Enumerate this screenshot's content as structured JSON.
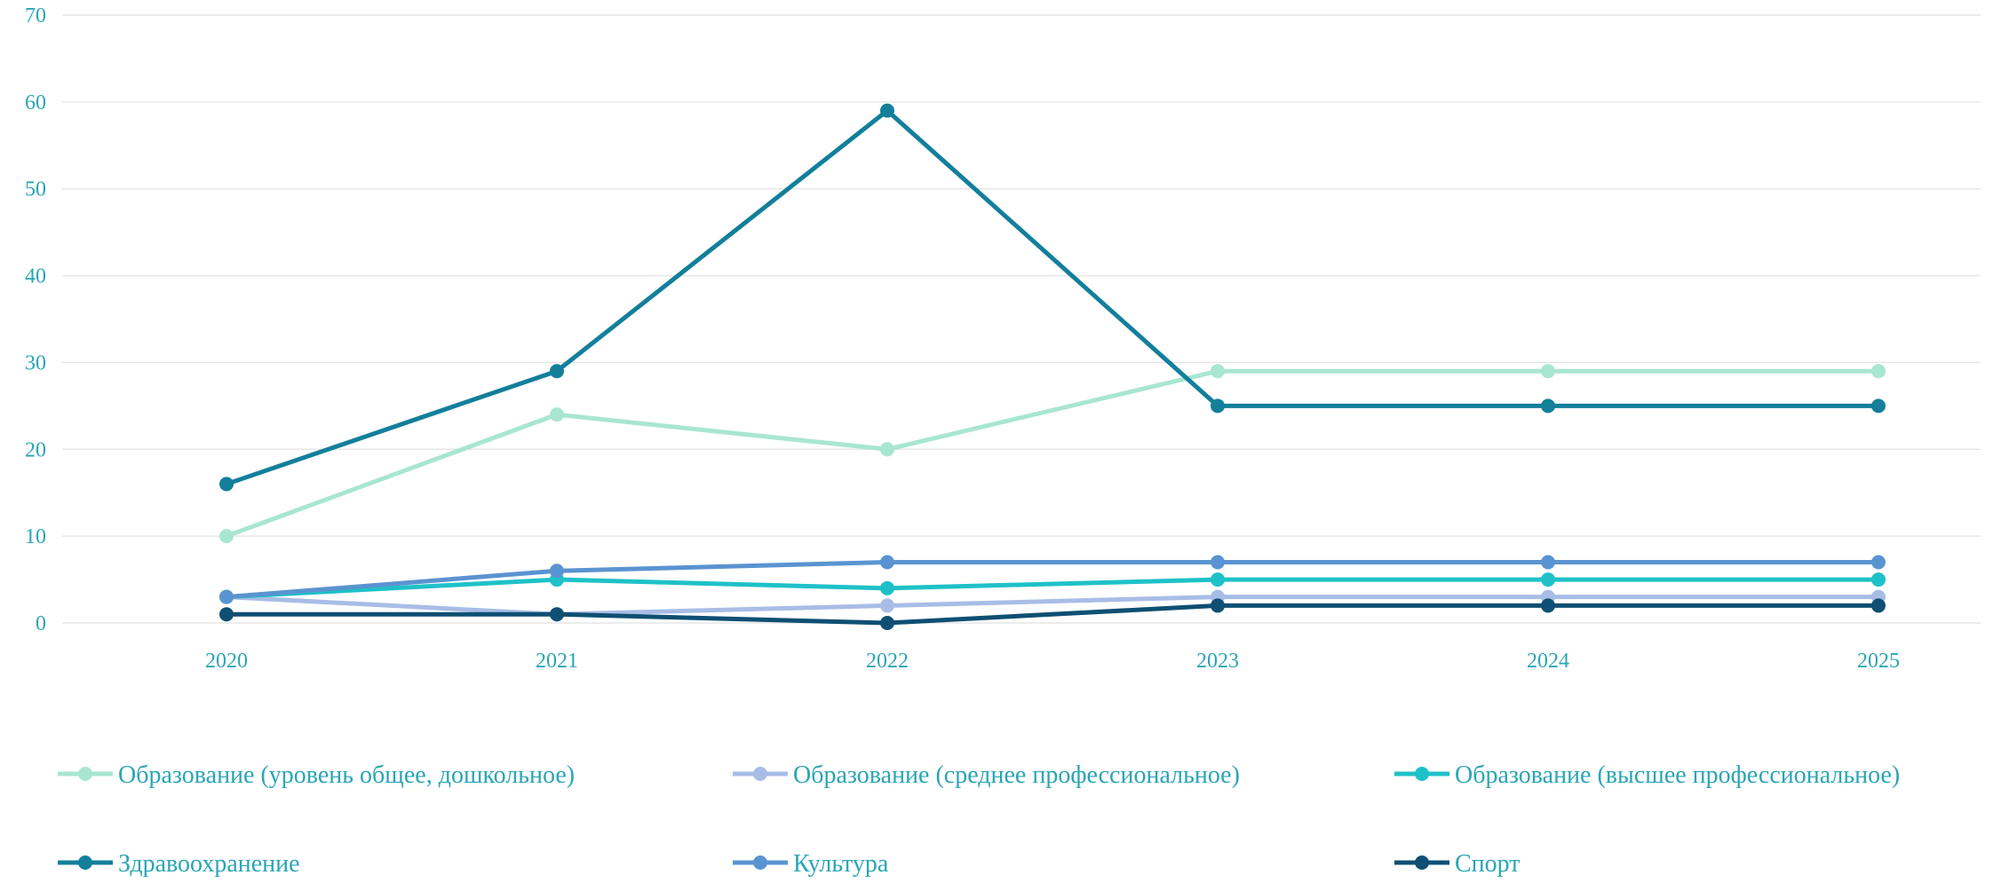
{
  "chart_data": {
    "type": "line",
    "categories": [
      "2020",
      "2021",
      "2022",
      "2023",
      "2024",
      "2025"
    ],
    "y_ticks": [
      "0",
      "10",
      "20",
      "30",
      "40",
      "50",
      "60",
      "70"
    ],
    "ylim": [
      0,
      70
    ],
    "grid": true,
    "legend_position": "bottom",
    "series": [
      {
        "name": "Образование (уровень общее, дошкольное)",
        "values": [
          10,
          24,
          20,
          29,
          29,
          29
        ],
        "color": "#a8e6d2"
      },
      {
        "name": "Образование (среднее профессиональное)",
        "values": [
          3,
          1,
          2,
          3,
          3,
          3
        ],
        "color": "#a8bde6"
      },
      {
        "name": "Образование (высшее профессиональное)",
        "values": [
          3,
          5,
          4,
          5,
          5,
          5
        ],
        "color": "#1ec1c8"
      },
      {
        "name": "Здравоохранение",
        "values": [
          16,
          29,
          59,
          25,
          25,
          25
        ],
        "color": "#137f9b"
      },
      {
        "name": "Культура",
        "values": [
          3,
          6,
          7,
          7,
          7,
          7
        ],
        "color": "#5a93d1"
      },
      {
        "name": "Спорт",
        "values": [
          1,
          1,
          0,
          2,
          2,
          2
        ],
        "color": "#0e4f73"
      }
    ]
  }
}
